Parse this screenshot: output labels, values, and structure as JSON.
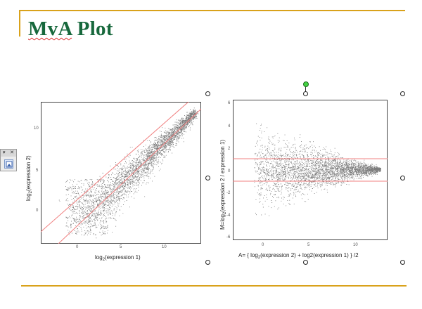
{
  "slide": {
    "title_part1": "MvA",
    "title_part2": " Plot"
  },
  "plots": {
    "scatter": {
      "xlabel_main": "log",
      "xlabel_sub": "2",
      "xlabel_rest": "(expression 1)",
      "ylabel_main": "log",
      "ylabel_sub": "2",
      "ylabel_rest": "(expression 2)",
      "x_ticks": [
        "0",
        "5",
        "10"
      ],
      "y_ticks": [
        "10",
        "5",
        "0"
      ]
    },
    "mva": {
      "xlabel_main": "A= { log",
      "xlabel_sub": "2",
      "xlabel_rest": "(expression 2) + log2(expression 1) } /2",
      "ylabel_main": "M=log",
      "ylabel_sub": "2",
      "ylabel_rest": "(expression 2 / expression 1)",
      "x_ticks": [
        "0",
        "5",
        "10"
      ],
      "y_ticks": [
        "6",
        "4",
        "2",
        "0",
        "-2",
        "-4",
        "-6"
      ]
    }
  },
  "toolbar": {
    "dropdown_glyph": "▾",
    "close_glyph": "✕"
  },
  "colors": {
    "accent_rule": "#d9a21b",
    "title": "#17683c",
    "reference_lines": "#f08080"
  }
}
